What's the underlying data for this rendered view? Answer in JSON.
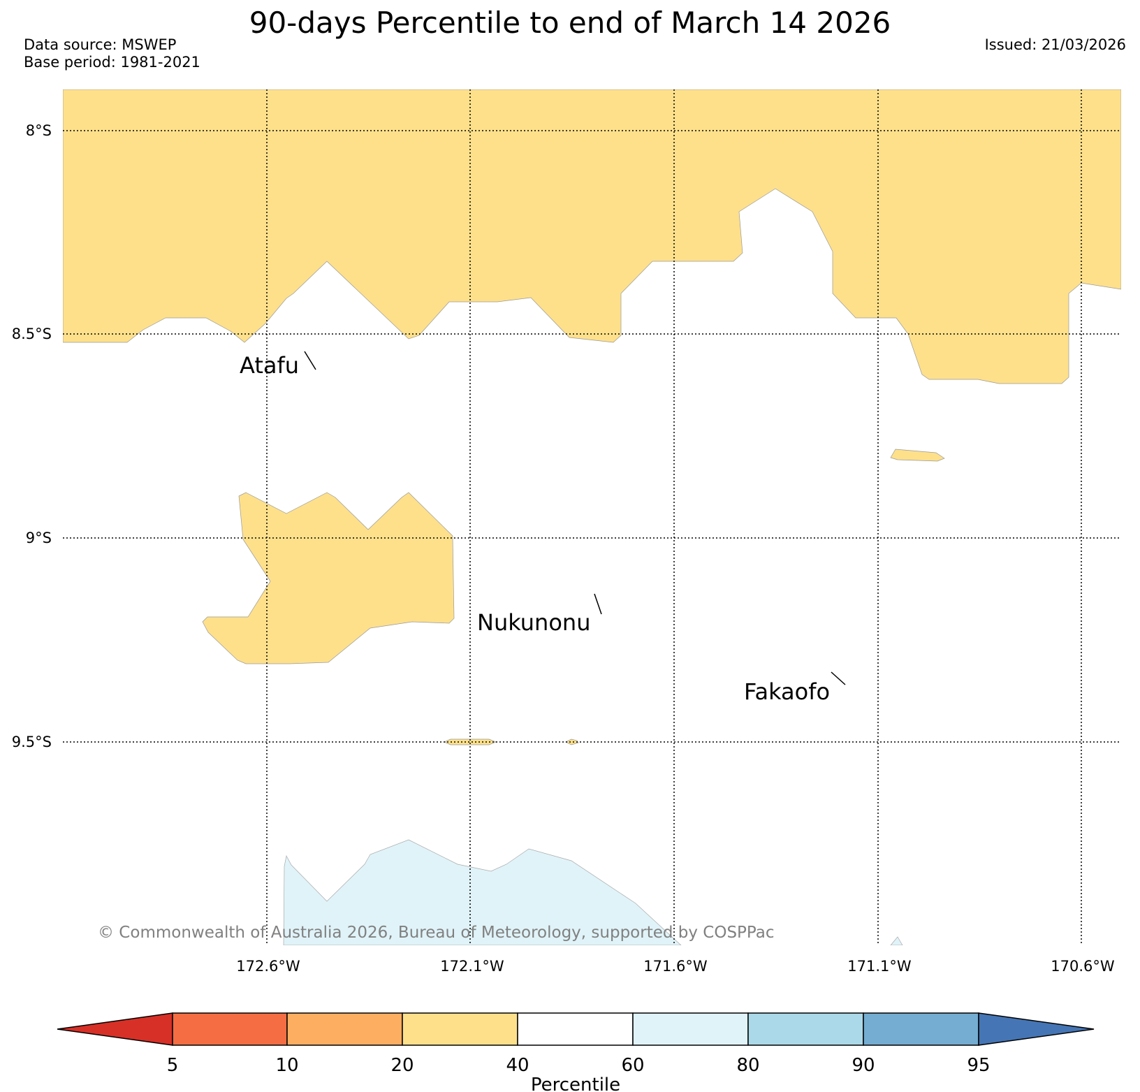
{
  "header": {
    "title": "90-days Percentile to end of March 14 2026",
    "data_source": "Data source: MSWEP",
    "base_period": "Base period: 1981-2021",
    "issued": "Issued: 21/03/2026"
  },
  "map": {
    "latitude_labels": [
      "8°S",
      "8.5°S",
      "9°S",
      "9.5°S"
    ],
    "longitude_labels": [
      "172.6°W",
      "172.1°W",
      "171.6°W",
      "171.1°W",
      "170.6°W"
    ],
    "places": [
      "Atafu",
      "Nukunonu",
      "Fakaofo"
    ],
    "copyright": "© Commonwealth of Australia 2026, Bureau of Meteorology, supported by COSPPac",
    "region_colors": {
      "20-40": "#fee08b",
      "60-80": "#e0f3f8"
    }
  },
  "colorbar": {
    "label": "Percentile",
    "ticks": [
      "5",
      "10",
      "20",
      "40",
      "60",
      "80",
      "90",
      "95"
    ],
    "colors": [
      "#d73027",
      "#f46d43",
      "#fdae61",
      "#fee08b",
      "#ffffff",
      "#e0f3f8",
      "#abd9e9",
      "#74add1",
      "#4575b4"
    ]
  }
}
